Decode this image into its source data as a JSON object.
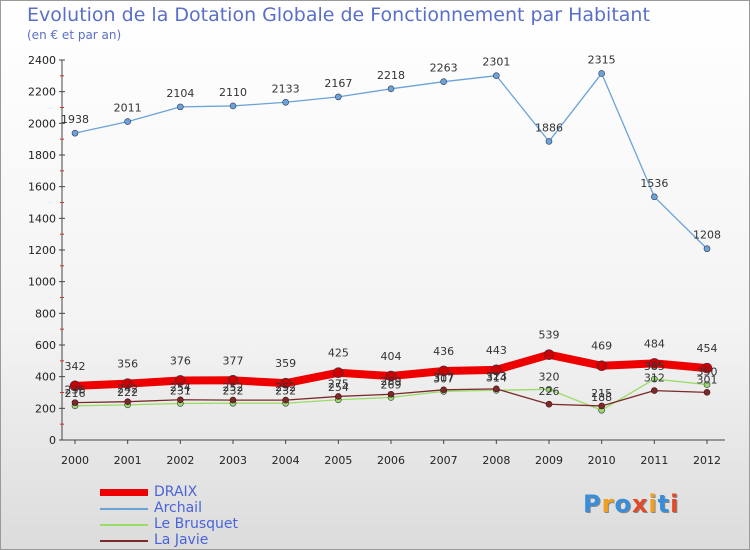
{
  "title": "Evolution de la Dotation Globale de Fonctionnement par Habitant",
  "subtitle": "(en € et par an)",
  "logo": {
    "text": "Proxiti",
    "colors": [
      "#3a8ed8",
      "#f0a020",
      "#3a8ed8",
      "#e04a2a",
      "#f0a020",
      "#3a8ed8",
      "#e04a2a"
    ]
  },
  "chart_data": {
    "type": "line",
    "x": [
      "2000",
      "2001",
      "2002",
      "2003",
      "2004",
      "2005",
      "2006",
      "2007",
      "2008",
      "2009",
      "2010",
      "2011",
      "2012"
    ],
    "ylim": [
      0,
      2400
    ],
    "yticks": [
      0,
      200,
      400,
      600,
      800,
      1000,
      1200,
      1400,
      1600,
      1800,
      2000,
      2200,
      2400
    ],
    "grid": false,
    "legend": "bottom-left",
    "series": [
      {
        "name": "DRAIX",
        "color": "#ee0000",
        "values": [
          342,
          356,
          376,
          377,
          359,
          425,
          404,
          436,
          443,
          539,
          469,
          484,
          454
        ]
      },
      {
        "name": "Archail",
        "color": "#6aa3d8",
        "values": [
          1938,
          2011,
          2104,
          2110,
          2133,
          2167,
          2218,
          2263,
          2301,
          1886,
          2315,
          1536,
          1208
        ]
      },
      {
        "name": "Le Brusquet",
        "color": "#99dd66",
        "values": [
          216,
          222,
          231,
          232,
          232,
          254,
          269,
          307,
          314,
          320,
          188,
          385,
          350
        ]
      },
      {
        "name": "La Javie",
        "color": "#7a2a2a",
        "values": [
          236,
          242,
          254,
          252,
          252,
          275,
          289,
          317,
          323,
          226,
          215,
          312,
          301
        ]
      }
    ]
  }
}
